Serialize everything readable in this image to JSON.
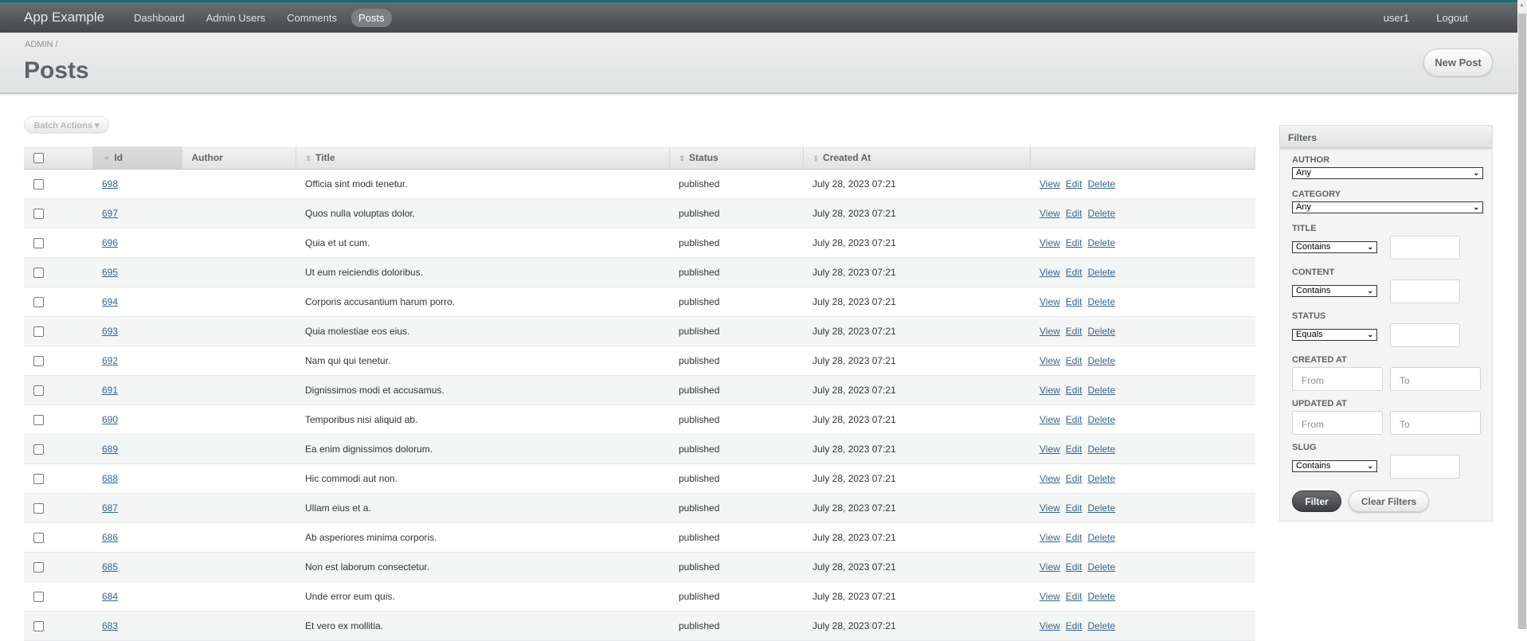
{
  "navbar": {
    "brand": "App Example",
    "items": [
      {
        "label": "Dashboard",
        "active": false
      },
      {
        "label": "Admin Users",
        "active": false
      },
      {
        "label": "Comments",
        "active": false
      },
      {
        "label": "Posts",
        "active": true
      }
    ],
    "user": "user1",
    "logout": "Logout"
  },
  "header": {
    "breadcrumb": "ADMIN /",
    "title": "Posts",
    "new_button": "New Post"
  },
  "batch_actions": "Batch Actions ▾",
  "table": {
    "columns": [
      "Id",
      "Author",
      "Title",
      "Status",
      "Created At"
    ],
    "sorted_column": "Id",
    "rows": [
      {
        "id": "698",
        "author": "",
        "title": "Officia sint modi tenetur.",
        "status": "published",
        "created": "July 28, 2023 07:21"
      },
      {
        "id": "697",
        "author": "",
        "title": "Quos nulla voluptas dolor.",
        "status": "published",
        "created": "July 28, 2023 07:21"
      },
      {
        "id": "696",
        "author": "",
        "title": "Quia et ut cum.",
        "status": "published",
        "created": "July 28, 2023 07:21"
      },
      {
        "id": "695",
        "author": "",
        "title": "Ut eum reiciendis doloribus.",
        "status": "published",
        "created": "July 28, 2023 07:21"
      },
      {
        "id": "694",
        "author": "",
        "title": "Corporis accusantium harum porro.",
        "status": "published",
        "created": "July 28, 2023 07:21"
      },
      {
        "id": "693",
        "author": "",
        "title": "Quia molestiae eos eius.",
        "status": "published",
        "created": "July 28, 2023 07:21"
      },
      {
        "id": "692",
        "author": "",
        "title": "Nam qui qui tenetur.",
        "status": "published",
        "created": "July 28, 2023 07:21"
      },
      {
        "id": "691",
        "author": "",
        "title": "Dignissimos modi et accusamus.",
        "status": "published",
        "created": "July 28, 2023 07:21"
      },
      {
        "id": "690",
        "author": "",
        "title": "Temporibus nisi aliquid ab.",
        "status": "published",
        "created": "July 28, 2023 07:21"
      },
      {
        "id": "689",
        "author": "",
        "title": "Ea enim dignissimos dolorum.",
        "status": "published",
        "created": "July 28, 2023 07:21"
      },
      {
        "id": "688",
        "author": "",
        "title": "Hic commodi aut non.",
        "status": "published",
        "created": "July 28, 2023 07:21"
      },
      {
        "id": "687",
        "author": "",
        "title": "Ullam eius et a.",
        "status": "published",
        "created": "July 28, 2023 07:21"
      },
      {
        "id": "686",
        "author": "",
        "title": "Ab asperiores minima corporis.",
        "status": "published",
        "created": "July 28, 2023 07:21"
      },
      {
        "id": "685",
        "author": "",
        "title": "Non est laborum consectetur.",
        "status": "published",
        "created": "July 28, 2023 07:21"
      },
      {
        "id": "684",
        "author": "",
        "title": "Unde error eum quis.",
        "status": "published",
        "created": "July 28, 2023 07:21"
      },
      {
        "id": "683",
        "author": "",
        "title": "Et vero ex mollitia.",
        "status": "published",
        "created": "July 28, 2023 07:21"
      }
    ],
    "actions": [
      "View",
      "Edit",
      "Delete"
    ]
  },
  "filters": {
    "title": "Filters",
    "author": {
      "label": "AUTHOR",
      "value": "Any"
    },
    "category": {
      "label": "CATEGORY",
      "value": "Any"
    },
    "title_f": {
      "label": "TITLE",
      "op": "Contains",
      "value": ""
    },
    "content": {
      "label": "CONTENT",
      "op": "Contains",
      "value": ""
    },
    "status": {
      "label": "STATUS",
      "op": "Equals",
      "value": ""
    },
    "created_at": {
      "label": "CREATED AT",
      "from": "From",
      "to": "To"
    },
    "updated_at": {
      "label": "UPDATED AT",
      "from": "From",
      "to": "To"
    },
    "slug": {
      "label": "SLUG",
      "op": "Contains",
      "value": ""
    },
    "filter_button": "Filter",
    "clear_button": "Clear Filters"
  }
}
